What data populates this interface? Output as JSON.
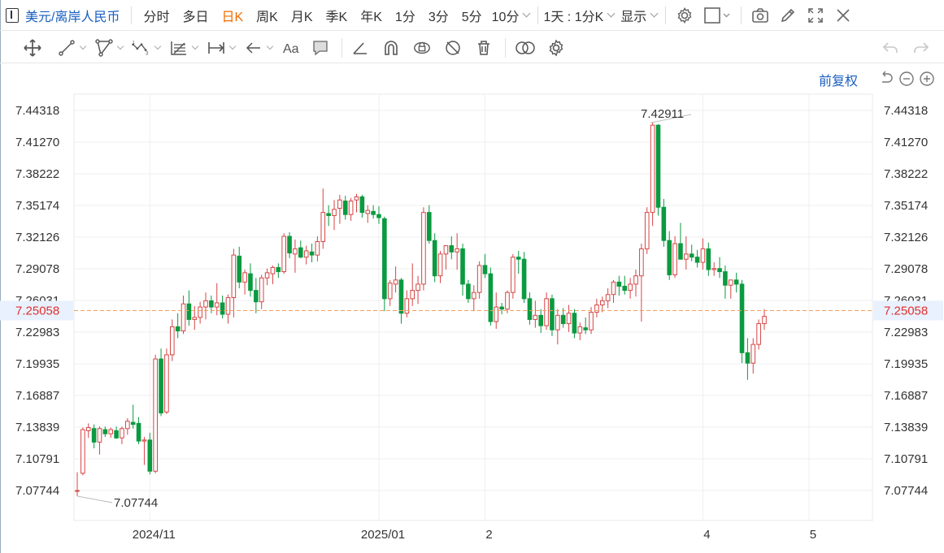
{
  "toolbar": {
    "symbol": "美元/离岸人民币",
    "periods": [
      "分时",
      "多日",
      "日K",
      "周K",
      "月K",
      "季K",
      "年K",
      "1分",
      "3分",
      "5分"
    ],
    "active_period": "日K",
    "more_period": "10分",
    "range_label": "1天 : 1分K",
    "display_label": "显示"
  },
  "adjust_label": "前复权",
  "colors": {
    "up": "#d64545",
    "down": "#0a9a40",
    "accent": "#1a5fbf",
    "active": "#ef6c00",
    "price_line": "#f0a060"
  },
  "chart_data": {
    "type": "candlestick",
    "y_ticks": [
      "7.44318",
      "7.41270",
      "7.38222",
      "7.35174",
      "7.32126",
      "7.29078",
      "7.26031",
      "7.22983",
      "7.19935",
      "7.16887",
      "7.13839",
      "7.10791",
      "7.07744"
    ],
    "x_labels": [
      {
        "label": "2024/11",
        "index": 13
      },
      {
        "label": "2025/01",
        "index": 54
      },
      {
        "label": "2",
        "index": 73
      },
      {
        "label": "4",
        "index": 112
      },
      {
        "label": "5",
        "index": 131
      }
    ],
    "current_price": "7.25058",
    "max_label": "7.42911",
    "min_label": "7.07744",
    "candles": [
      [
        7.0774,
        7.095,
        7.072,
        7.0774
      ],
      [
        7.094,
        7.138,
        7.092,
        7.136
      ],
      [
        7.135,
        7.142,
        7.128,
        7.138
      ],
      [
        7.137,
        7.141,
        7.118,
        7.124
      ],
      [
        7.124,
        7.139,
        7.112,
        7.137
      ],
      [
        7.136,
        7.139,
        7.129,
        7.132
      ],
      [
        7.132,
        7.138,
        7.128,
        7.136
      ],
      [
        7.135,
        7.139,
        7.127,
        7.128
      ],
      [
        7.128,
        7.139,
        7.122,
        7.137
      ],
      [
        7.137,
        7.147,
        7.131,
        7.144
      ],
      [
        7.143,
        7.16,
        7.137,
        7.141
      ],
      [
        7.142,
        7.148,
        7.122,
        7.125
      ],
      [
        7.125,
        7.129,
        7.102,
        7.126
      ],
      [
        7.126,
        7.133,
        7.093,
        7.096
      ],
      [
        7.096,
        7.208,
        7.094,
        7.204
      ],
      [
        7.204,
        7.214,
        7.149,
        7.152
      ],
      [
        7.153,
        7.214,
        7.151,
        7.208
      ],
      [
        7.208,
        7.242,
        7.202,
        7.235
      ],
      [
        7.235,
        7.248,
        7.224,
        7.231
      ],
      [
        7.231,
        7.265,
        7.228,
        7.257
      ],
      [
        7.257,
        7.27,
        7.236,
        7.242
      ],
      [
        7.242,
        7.255,
        7.232,
        7.244
      ],
      [
        7.244,
        7.259,
        7.238,
        7.254
      ],
      [
        7.254,
        7.268,
        7.242,
        7.26
      ],
      [
        7.26,
        7.265,
        7.248,
        7.254
      ],
      [
        7.254,
        7.277,
        7.246,
        7.258
      ],
      [
        7.258,
        7.265,
        7.243,
        7.247
      ],
      [
        7.247,
        7.266,
        7.238,
        7.263
      ],
      [
        7.263,
        7.31,
        7.244,
        7.304
      ],
      [
        7.303,
        7.312,
        7.272,
        7.278
      ],
      [
        7.278,
        7.29,
        7.266,
        7.287
      ],
      [
        7.286,
        7.296,
        7.264,
        7.27
      ],
      [
        7.27,
        7.282,
        7.248,
        7.259
      ],
      [
        7.259,
        7.285,
        7.252,
        7.282
      ],
      [
        7.282,
        7.291,
        7.275,
        7.287
      ],
      [
        7.286,
        7.294,
        7.276,
        7.292
      ],
      [
        7.292,
        7.296,
        7.282,
        7.288
      ],
      [
        7.288,
        7.325,
        7.286,
        7.322
      ],
      [
        7.322,
        7.326,
        7.301,
        7.306
      ],
      [
        7.305,
        7.319,
        7.287,
        7.31
      ],
      [
        7.311,
        7.318,
        7.301,
        7.302
      ],
      [
        7.302,
        7.313,
        7.295,
        7.308
      ],
      [
        7.307,
        7.315,
        7.297,
        7.304
      ],
      [
        7.304,
        7.322,
        7.298,
        7.317
      ],
      [
        7.317,
        7.368,
        7.31,
        7.345
      ],
      [
        7.344,
        7.352,
        7.332,
        7.342
      ],
      [
        7.342,
        7.357,
        7.328,
        7.348
      ],
      [
        7.349,
        7.362,
        7.334,
        7.357
      ],
      [
        7.356,
        7.361,
        7.338,
        7.343
      ],
      [
        7.343,
        7.359,
        7.337,
        7.356
      ],
      [
        7.357,
        7.363,
        7.345,
        7.36
      ],
      [
        7.36,
        7.362,
        7.34,
        7.345
      ],
      [
        7.344,
        7.352,
        7.335,
        7.347
      ],
      [
        7.346,
        7.352,
        7.339,
        7.343
      ],
      [
        7.343,
        7.351,
        7.334,
        7.34
      ],
      [
        7.339,
        7.341,
        7.25,
        7.262
      ],
      [
        7.262,
        7.28,
        7.255,
        7.277
      ],
      [
        7.276,
        7.293,
        7.268,
        7.28
      ],
      [
        7.28,
        7.282,
        7.238,
        7.248
      ],
      [
        7.248,
        7.27,
        7.244,
        7.262
      ],
      [
        7.262,
        7.296,
        7.255,
        7.27
      ],
      [
        7.27,
        7.284,
        7.257,
        7.276
      ],
      [
        7.276,
        7.35,
        7.27,
        7.345
      ],
      [
        7.345,
        7.352,
        7.315,
        7.318
      ],
      [
        7.318,
        7.325,
        7.278,
        7.284
      ],
      [
        7.284,
        7.308,
        7.277,
        7.305
      ],
      [
        7.305,
        7.31,
        7.29,
        7.313
      ],
      [
        7.313,
        7.322,
        7.3,
        7.307
      ],
      [
        7.307,
        7.325,
        7.29,
        7.31
      ],
      [
        7.31,
        7.315,
        7.265,
        7.276
      ],
      [
        7.276,
        7.28,
        7.258,
        7.262
      ],
      [
        7.262,
        7.275,
        7.25,
        7.268
      ],
      [
        7.268,
        7.298,
        7.262,
        7.294
      ],
      [
        7.294,
        7.305,
        7.282,
        7.286
      ],
      [
        7.286,
        7.292,
        7.236,
        7.24
      ],
      [
        7.24,
        7.268,
        7.233,
        7.254
      ],
      [
        7.254,
        7.258,
        7.247,
        7.252
      ],
      [
        7.252,
        7.27,
        7.248,
        7.268
      ],
      [
        7.268,
        7.305,
        7.262,
        7.302
      ],
      [
        7.302,
        7.308,
        7.286,
        7.3
      ],
      [
        7.3,
        7.307,
        7.258,
        7.262
      ],
      [
        7.262,
        7.268,
        7.237,
        7.242
      ],
      [
        7.242,
        7.26,
        7.234,
        7.246
      ],
      [
        7.246,
        7.252,
        7.229,
        7.236
      ],
      [
        7.236,
        7.268,
        7.232,
        7.262
      ],
      [
        7.262,
        7.266,
        7.226,
        7.232
      ],
      [
        7.232,
        7.252,
        7.218,
        7.246
      ],
      [
        7.246,
        7.253,
        7.234,
        7.238
      ],
      [
        7.238,
        7.256,
        7.23,
        7.248
      ],
      [
        7.248,
        7.252,
        7.224,
        7.229
      ],
      [
        7.229,
        7.239,
        7.222,
        7.235
      ],
      [
        7.234,
        7.244,
        7.228,
        7.232
      ],
      [
        7.232,
        7.254,
        7.228,
        7.249
      ],
      [
        7.249,
        7.262,
        7.244,
        7.256
      ],
      [
        7.256,
        7.264,
        7.249,
        7.26
      ],
      [
        7.26,
        7.272,
        7.253,
        7.266
      ],
      [
        7.266,
        7.28,
        7.258,
        7.278
      ],
      [
        7.278,
        7.284,
        7.265,
        7.274
      ],
      [
        7.274,
        7.284,
        7.266,
        7.27
      ],
      [
        7.27,
        7.282,
        7.262,
        7.276
      ],
      [
        7.276,
        7.29,
        7.264,
        7.284
      ],
      [
        7.284,
        7.315,
        7.24,
        7.31
      ],
      [
        7.31,
        7.35,
        7.305,
        7.345
      ],
      [
        7.345,
        7.432,
        7.332,
        7.429
      ],
      [
        7.429,
        7.43,
        7.342,
        7.35
      ],
      [
        7.35,
        7.358,
        7.312,
        7.318
      ],
      [
        7.318,
        7.327,
        7.28,
        7.285
      ],
      [
        7.285,
        7.322,
        7.282,
        7.315
      ],
      [
        7.315,
        7.335,
        7.3,
        7.3
      ],
      [
        7.3,
        7.322,
        7.29,
        7.305
      ],
      [
        7.305,
        7.314,
        7.298,
        7.302
      ],
      [
        7.302,
        7.309,
        7.292,
        7.297
      ],
      [
        7.297,
        7.32,
        7.29,
        7.31
      ],
      [
        7.31,
        7.316,
        7.284,
        7.29
      ],
      [
        7.29,
        7.297,
        7.284,
        7.291
      ],
      [
        7.291,
        7.302,
        7.282,
        7.288
      ],
      [
        7.288,
        7.294,
        7.262,
        7.275
      ],
      [
        7.275,
        7.28,
        7.262,
        7.28
      ],
      [
        7.28,
        7.287,
        7.268,
        7.276
      ],
      [
        7.276,
        7.28,
        7.2,
        7.21
      ],
      [
        7.21,
        7.224,
        7.184,
        7.2
      ],
      [
        7.2,
        7.224,
        7.19,
        7.218
      ],
      [
        7.218,
        7.242,
        7.213,
        7.238
      ],
      [
        7.238,
        7.252,
        7.232,
        7.245
      ]
    ]
  }
}
